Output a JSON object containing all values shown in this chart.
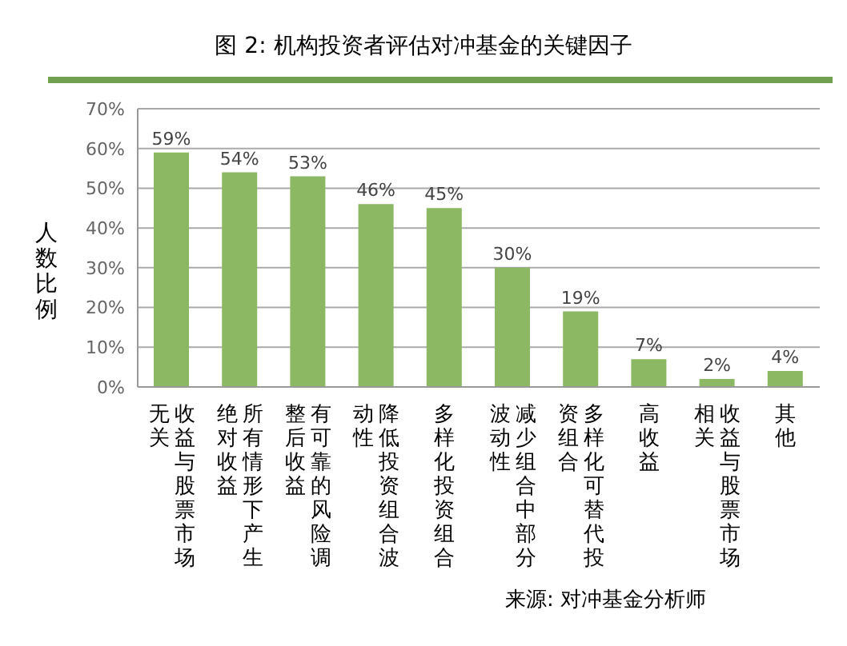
{
  "chart_data": {
    "type": "bar",
    "title": "图 2: 机构投资者评估对冲基金的关键因子",
    "ylabel": "人数比例",
    "categories": [
      "收益与股票市场无关",
      "所有情形下产生绝对收益",
      "有可靠的风险调整后收益",
      "降低投资组合波动性",
      "多样化投资组合",
      "减少组合中部分波动性",
      "多样化可替代投资组合",
      "高收益",
      "收益与股票市场相关",
      "其他"
    ],
    "values": [
      59,
      54,
      53,
      46,
      45,
      30,
      19,
      7,
      2,
      4
    ],
    "value_labels": [
      "59%",
      "54%",
      "53%",
      "46%",
      "45%",
      "30%",
      "19%",
      "7%",
      "2%",
      "4%"
    ],
    "color": "#8cb864",
    "ylim": [
      0,
      70
    ],
    "yticks": [
      {
        "value": 0,
        "label": "0%"
      },
      {
        "value": 10,
        "label": "10%"
      },
      {
        "value": 20,
        "label": "20%"
      },
      {
        "value": 30,
        "label": "30%"
      },
      {
        "value": 40,
        "label": "40%"
      },
      {
        "value": 50,
        "label": "50%"
      },
      {
        "value": 60,
        "label": "60%"
      },
      {
        "value": 70,
        "label": "70%"
      }
    ],
    "grid": "y",
    "annotations": [
      "来源: 对冲基金分析师"
    ]
  }
}
